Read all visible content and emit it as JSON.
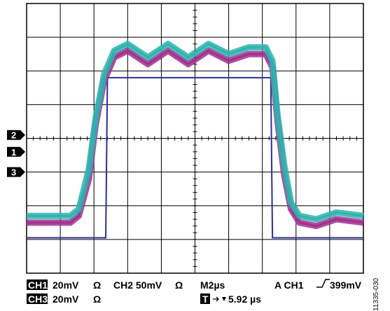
{
  "chart_data": {
    "type": "line",
    "grid": true,
    "x_divisions": 10,
    "y_divisions": 8,
    "time_per_div_us": 2,
    "series": [
      {
        "channel": "CH1",
        "color": "#2b2f9e",
        "x": [
          0,
          2.35,
          2.4,
          7.25,
          7.3,
          10
        ],
        "y": [
          -2.95,
          -2.95,
          1.8,
          1.8,
          -2.95,
          -2.95
        ]
      },
      {
        "channel": "CH2",
        "color": "#a0308e",
        "x": [
          0,
          1.3,
          1.55,
          1.85,
          2.05,
          2.3,
          2.6,
          3.0,
          3.6,
          4.2,
          4.8,
          5.4,
          6.0,
          6.6,
          7.1,
          7.3,
          7.45,
          7.65,
          7.85,
          8.1,
          8.6,
          9.2,
          10
        ],
        "y": [
          -2.5,
          -2.5,
          -2.3,
          -1.2,
          0.4,
          1.7,
          2.4,
          2.6,
          2.2,
          2.6,
          2.2,
          2.6,
          2.3,
          2.5,
          2.5,
          2.1,
          0.5,
          -1.1,
          -2.1,
          -2.5,
          -2.6,
          -2.4,
          -2.5
        ]
      },
      {
        "channel": "CH3",
        "color": "#2fb3ae",
        "x": [
          0,
          1.3,
          1.55,
          1.85,
          2.05,
          2.3,
          2.6,
          3.0,
          3.6,
          4.2,
          4.8,
          5.4,
          6.0,
          6.6,
          7.1,
          7.3,
          7.45,
          7.65,
          7.85,
          8.1,
          8.6,
          9.2,
          10
        ],
        "y": [
          -2.3,
          -2.3,
          -2.1,
          -0.9,
          0.6,
          1.9,
          2.6,
          2.8,
          2.4,
          2.8,
          2.4,
          2.8,
          2.5,
          2.7,
          2.7,
          2.3,
          0.7,
          -0.8,
          -1.9,
          -2.3,
          -2.4,
          -2.2,
          -2.3
        ]
      }
    ],
    "markers": [
      {
        "label": "2",
        "level_div": 0.1
      },
      {
        "label": "1",
        "level_div": -0.4
      },
      {
        "label": "3",
        "level_div": -1.0
      }
    ]
  },
  "readout": {
    "ch1_badge": "CH1",
    "ch1_text": "20mV",
    "ch1_ohm": "Ω",
    "ch2_text": "CH2 50mV",
    "ch2_ohm": "Ω",
    "timebase": "M2µs",
    "trigger_text": "A  CH1",
    "trigger_level": "399mV",
    "ch3_badge": "CH3",
    "ch3_text": "20mV",
    "ch3_ohm": "Ω",
    "t_badge": "T",
    "t_offset": "5.92 µs"
  },
  "figure_id": "11335-030"
}
